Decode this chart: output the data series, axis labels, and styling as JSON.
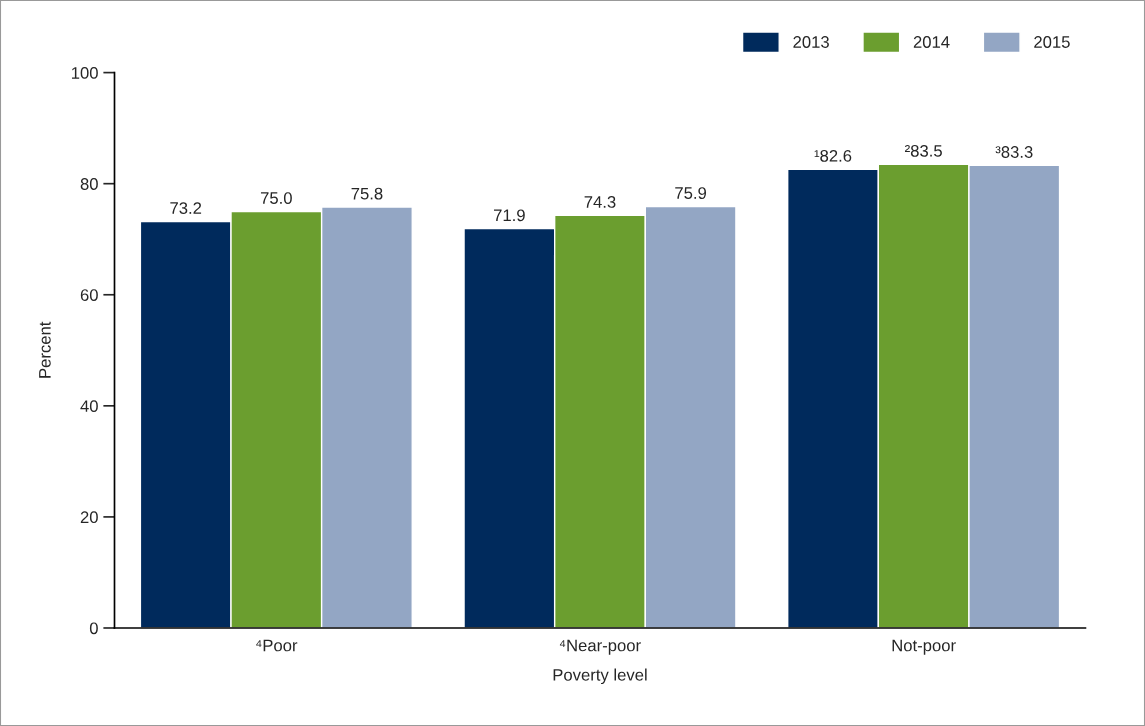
{
  "chart_data": {
    "type": "bar",
    "xlabel": "Poverty level",
    "ylabel": "Percent",
    "categories": [
      "⁴Poor",
      "⁴Near-poor",
      "Not-poor"
    ],
    "series": [
      {
        "name": "2013",
        "color": "#002a5c",
        "values": [
          73.2,
          71.9,
          82.6
        ],
        "value_labels": [
          "73.2",
          "71.9",
          "¹82.6"
        ]
      },
      {
        "name": "2014",
        "color": "#6b9e2f",
        "values": [
          75.0,
          74.3,
          83.5
        ],
        "value_labels": [
          "75.0",
          "74.3",
          "²83.5"
        ]
      },
      {
        "name": "2015",
        "color": "#93a6c4",
        "values": [
          75.8,
          75.9,
          83.3
        ],
        "value_labels": [
          "75.8",
          "75.9",
          "³83.3"
        ]
      }
    ],
    "ylim": [
      0,
      100
    ],
    "yticks": [
      0,
      20,
      40,
      60,
      80,
      100
    ],
    "grid": false,
    "legend": "top right"
  }
}
